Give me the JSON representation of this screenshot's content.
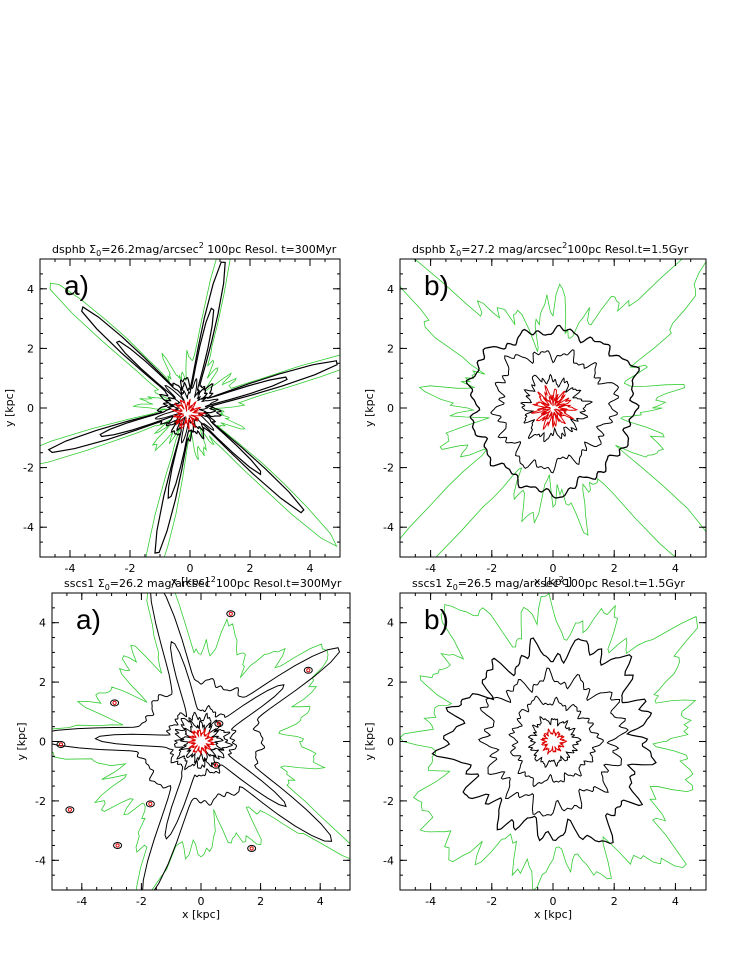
{
  "chart_data": [
    {
      "type": "contour",
      "panel_label": "a)",
      "title": {
        "pre": "dsphb Σ",
        "sub": "0",
        "mid": "=26.2mag/arcsec",
        "sup": "2",
        "post": " 100pc Resol. t=300Myr"
      },
      "xlabel": "x [kpc]",
      "ylabel": "y [kpc]",
      "xlim": [
        -5,
        5
      ],
      "ylim": [
        -5,
        5
      ],
      "xticks": [
        -4,
        -2,
        0,
        2,
        4
      ],
      "yticks": [
        -4,
        -2,
        0,
        2,
        4
      ]
    },
    {
      "type": "contour",
      "panel_label": "b)",
      "title": {
        "pre": "dsphb Σ",
        "sub": "0",
        "mid": "=27.2 mag/arcsec",
        "sup": "2",
        "post": "100pc Resol.t=1.5Gyr"
      },
      "xlabel": "x [kpc]",
      "ylabel": "y [kpc]",
      "xlim": [
        -5,
        5
      ],
      "ylim": [
        -5,
        5
      ],
      "xticks": [
        -4,
        -2,
        0,
        2,
        4
      ],
      "yticks": [
        -4,
        -2,
        0,
        2,
        4
      ]
    },
    {
      "type": "contour",
      "panel_label": "a)",
      "title": {
        "pre": "sscs1 Σ",
        "sub": "0",
        "mid": "=26.2 mag/arcsec",
        "sup": "2",
        "post": "100pc Resol.t=300Myr"
      },
      "xlabel": "x [kpc]",
      "ylabel": "y [kpc]",
      "xlim": [
        -5,
        5
      ],
      "ylim": [
        -5,
        5
      ],
      "xticks": [
        -4,
        -2,
        0,
        2,
        4
      ],
      "yticks": [
        -4,
        -2,
        0,
        2,
        4
      ]
    },
    {
      "type": "contour",
      "panel_label": "b)",
      "title": {
        "pre": "sscs1 Σ",
        "sub": "0",
        "mid": "=26.5 mag/arcsec",
        "sup": "2",
        "post": "100pc Resol.t=1.5Gyr"
      },
      "xlabel": "x [kpc]",
      "ylabel": "y [kpc]",
      "xlim": [
        -5,
        5
      ],
      "ylim": [
        -5,
        5
      ],
      "xticks": [
        -4,
        -2,
        0,
        2,
        4
      ],
      "yticks": [
        -4,
        -2,
        0,
        2,
        4
      ]
    }
  ]
}
